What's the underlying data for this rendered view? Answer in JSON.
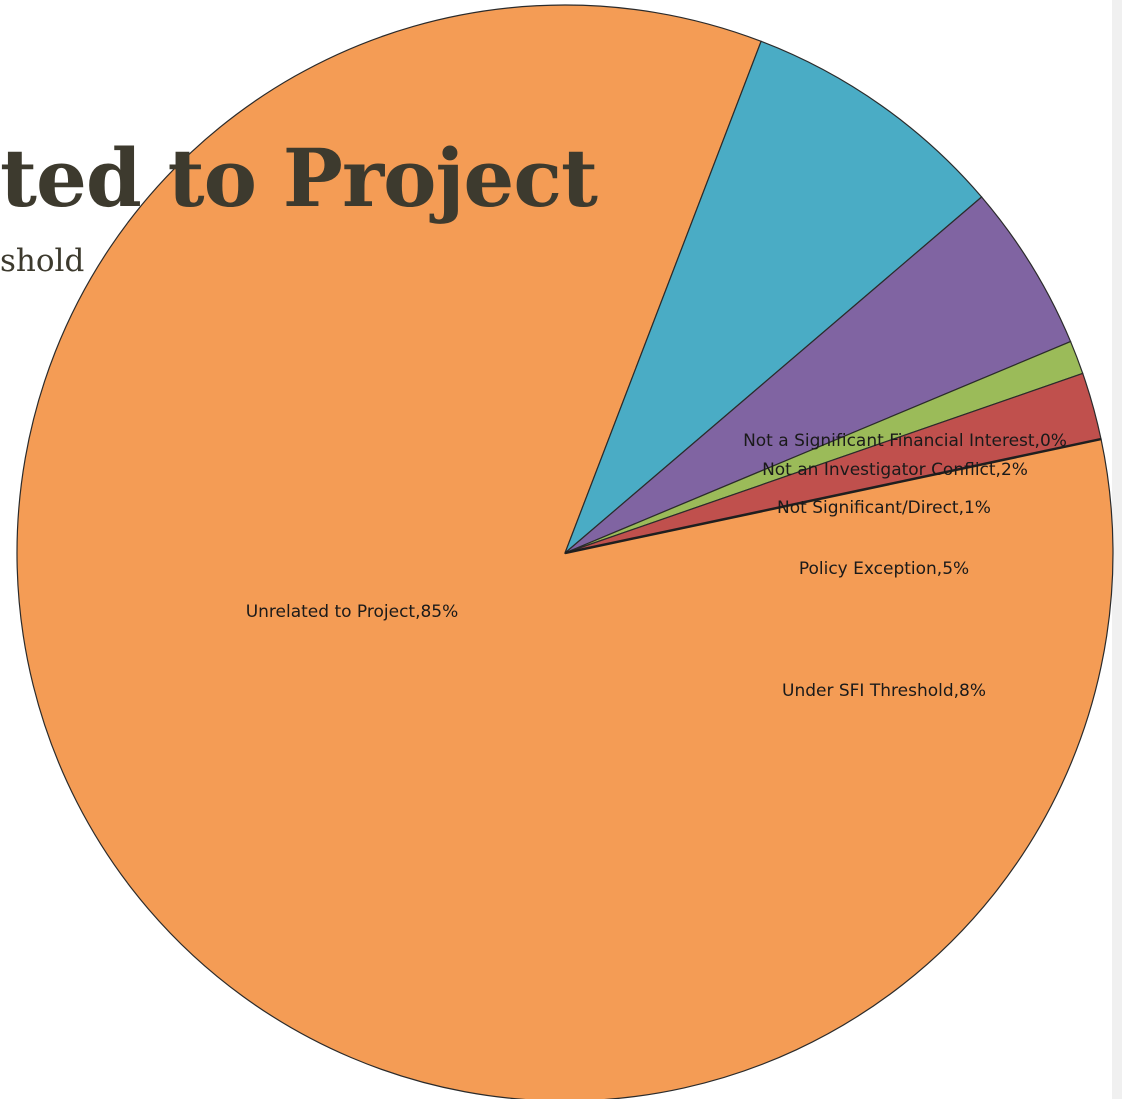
{
  "slide": {
    "title_fragment": "ted to Project",
    "subtitle_fragment": "shold"
  },
  "chart_data": {
    "type": "pie",
    "start_angle_deg": 12,
    "slices": [
      {
        "label": "Unrelated to Project,85%",
        "value": 85,
        "color": "#f49c55"
      },
      {
        "label": "Under SFI Threshold,8%",
        "value": 8,
        "color": "#4aacc5"
      },
      {
        "label": "Policy Exception,5%",
        "value": 5,
        "color": "#8064a2"
      },
      {
        "label": "Not Significant/Direct,1%",
        "value": 1,
        "color": "#9bbb59"
      },
      {
        "label": "Not an Investigator Conflict,2%",
        "value": 2,
        "color": "#c0504d"
      },
      {
        "label": "Not a Significant Financial Interest,0%",
        "value": 0,
        "color": "#1f1f1f"
      }
    ]
  }
}
